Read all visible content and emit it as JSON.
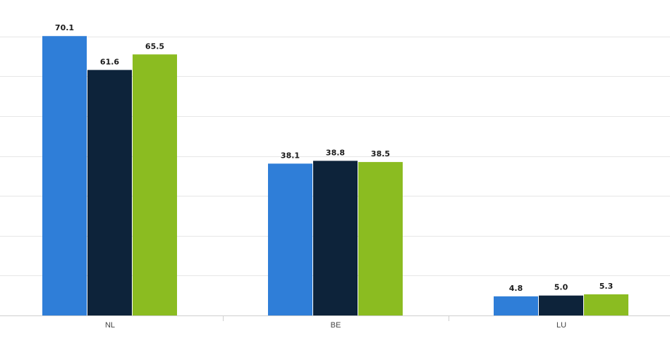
{
  "chart_data": {
    "type": "bar",
    "categories": [
      "NL",
      "BE",
      "LU"
    ],
    "series": [
      {
        "values": [
          70.1,
          38.1,
          4.8
        ],
        "color": "#2f7ed8"
      },
      {
        "values": [
          61.6,
          38.8,
          5.0
        ],
        "color": "#0d233a"
      },
      {
        "values": [
          65.5,
          38.5,
          5.3
        ],
        "color": "#8bbc21"
      }
    ],
    "value_labels": [
      [
        "70.1",
        "38.1",
        "4.8"
      ],
      [
        "61.6",
        "38.8",
        "5.0"
      ],
      [
        "65.5",
        "38.5",
        "5.3"
      ]
    ],
    "ylim": [
      0,
      80
    ],
    "grid": true,
    "title": "",
    "xlabel": "",
    "ylabel": ""
  }
}
